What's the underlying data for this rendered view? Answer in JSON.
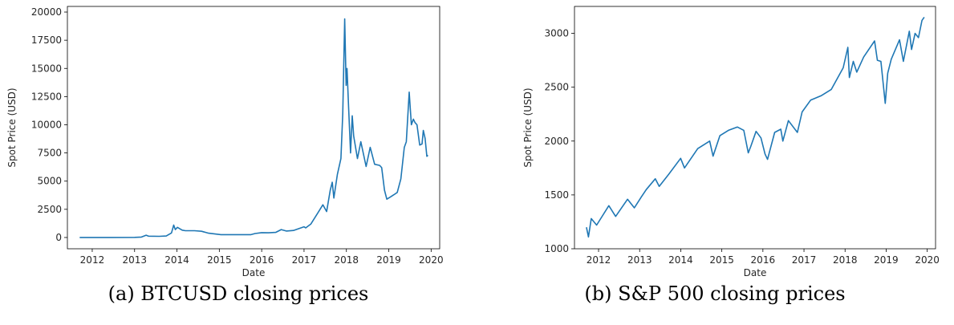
{
  "figure": {
    "captions": [
      "(a) BTCUSD closing prices",
      "(b) S&P 500 closing prices"
    ]
  },
  "chart_data": [
    {
      "type": "line",
      "title": "",
      "xlabel": "Date",
      "ylabel": "Spot Price (USD)",
      "xlim": [
        "2011-06-01",
        "2020-03-15"
      ],
      "ylim": [
        -1000,
        20500
      ],
      "x_ticks": [
        "2012",
        "2013",
        "2014",
        "2015",
        "2016",
        "2017",
        "2018",
        "2019",
        "2020"
      ],
      "y_ticks": [
        "0",
        "2500",
        "5000",
        "7500",
        "10000",
        "12500",
        "15000",
        "17500",
        "20000"
      ],
      "line_color": "#1f77b4",
      "grid": false,
      "series": [
        {
          "x": [
            "2011-09-15",
            "2012-06-01",
            "2013-01-01",
            "2013-03-01",
            "2013-04-10",
            "2013-05-01",
            "2013-08-01",
            "2013-10-01",
            "2013-11-15",
            "2013-12-04",
            "2013-12-18",
            "2014-01-05",
            "2014-02-15",
            "2014-03-15",
            "2014-06-01",
            "2014-08-01",
            "2014-10-01",
            "2015-01-15",
            "2015-04-01",
            "2015-07-01",
            "2015-10-01",
            "2015-11-05",
            "2016-01-01",
            "2016-03-01",
            "2016-05-01",
            "2016-06-18",
            "2016-08-01",
            "2016-10-01",
            "2017-01-01",
            "2017-01-15",
            "2017-03-01",
            "2017-05-01",
            "2017-06-12",
            "2017-07-15",
            "2017-08-15",
            "2017-09-01",
            "2017-09-15",
            "2017-10-15",
            "2017-11-15",
            "2017-12-01",
            "2017-12-17",
            "2017-12-30",
            "2018-01-06",
            "2018-01-20",
            "2018-02-06",
            "2018-02-20",
            "2018-03-05",
            "2018-04-06",
            "2018-05-05",
            "2018-06-20",
            "2018-07-25",
            "2018-09-01",
            "2018-10-15",
            "2018-11-01",
            "2018-11-25",
            "2018-12-15",
            "2019-01-15",
            "2019-02-15",
            "2019-03-15",
            "2019-04-15",
            "2019-05-15",
            "2019-06-01",
            "2019-06-26",
            "2019-07-15",
            "2019-08-01",
            "2019-08-15",
            "2019-09-01",
            "2019-09-25",
            "2019-10-15",
            "2019-10-26",
            "2019-11-10",
            "2019-11-25",
            "2019-12-05"
          ],
          "y": [
            5,
            5,
            13,
            40,
            200,
            120,
            100,
            130,
            400,
            1100,
            700,
            900,
            650,
            600,
            600,
            550,
            380,
            250,
            250,
            250,
            250,
            350,
            430,
            420,
            450,
            700,
            570,
            620,
            950,
            850,
            1200,
            2200,
            2900,
            2300,
            4200,
            4900,
            3500,
            5600,
            7000,
            11000,
            19400,
            13500,
            15000,
            11500,
            7500,
            10800,
            9000,
            7000,
            8500,
            6300,
            8000,
            6500,
            6400,
            6200,
            4200,
            3400,
            3600,
            3800,
            4000,
            5200,
            8000,
            8500,
            12900,
            10000,
            10500,
            10200,
            10000,
            8200,
            8300,
            9500,
            8800,
            7200,
            7300
          ]
        }
      ]
    },
    {
      "type": "line",
      "title": "",
      "xlabel": "Date",
      "ylabel": "Spot Price (USD)",
      "xlim": [
        "2011-06-01",
        "2020-03-15"
      ],
      "ylim": [
        1000,
        3250
      ],
      "x_ticks": [
        "2012",
        "2013",
        "2014",
        "2015",
        "2016",
        "2017",
        "2018",
        "2019",
        "2020"
      ],
      "y_ticks": [
        "1000",
        "1500",
        "2000",
        "2500",
        "3000"
      ],
      "line_color": "#1f77b4",
      "grid": false,
      "series": [
        {
          "x": [
            "2011-09-15",
            "2011-10-03",
            "2011-10-28",
            "2011-12-15",
            "2012-04-01",
            "2012-06-01",
            "2012-09-15",
            "2012-11-15",
            "2013-01-15",
            "2013-03-01",
            "2013-05-20",
            "2013-06-24",
            "2013-09-15",
            "2013-12-31",
            "2014-02-03",
            "2014-06-01",
            "2014-09-15",
            "2014-10-15",
            "2014-12-15",
            "2015-03-01",
            "2015-05-20",
            "2015-07-15",
            "2015-08-24",
            "2015-09-15",
            "2015-11-01",
            "2015-12-15",
            "2016-01-20",
            "2016-02-11",
            "2016-04-15",
            "2016-06-08",
            "2016-06-27",
            "2016-08-15",
            "2016-11-03",
            "2016-12-15",
            "2017-03-01",
            "2017-06-01",
            "2017-09-01",
            "2017-12-15",
            "2018-01-26",
            "2018-02-08",
            "2018-03-15",
            "2018-04-15",
            "2018-06-15",
            "2018-09-20",
            "2018-10-15",
            "2018-11-15",
            "2018-12-24",
            "2019-01-15",
            "2019-02-15",
            "2019-04-30",
            "2019-06-03",
            "2019-07-26",
            "2019-08-15",
            "2019-09-15",
            "2019-10-15",
            "2019-11-15",
            "2019-12-05"
          ],
          "y": [
            1200,
            1110,
            1280,
            1220,
            1400,
            1300,
            1460,
            1380,
            1480,
            1550,
            1650,
            1580,
            1690,
            1840,
            1750,
            1930,
            2000,
            1860,
            2050,
            2100,
            2130,
            2100,
            1890,
            1950,
            2090,
            2030,
            1880,
            1830,
            2080,
            2110,
            2000,
            2190,
            2080,
            2270,
            2380,
            2420,
            2480,
            2680,
            2870,
            2590,
            2740,
            2640,
            2780,
            2930,
            2750,
            2740,
            2350,
            2630,
            2760,
            2940,
            2740,
            3020,
            2850,
            3000,
            2960,
            3120,
            3150
          ]
        }
      ]
    }
  ]
}
